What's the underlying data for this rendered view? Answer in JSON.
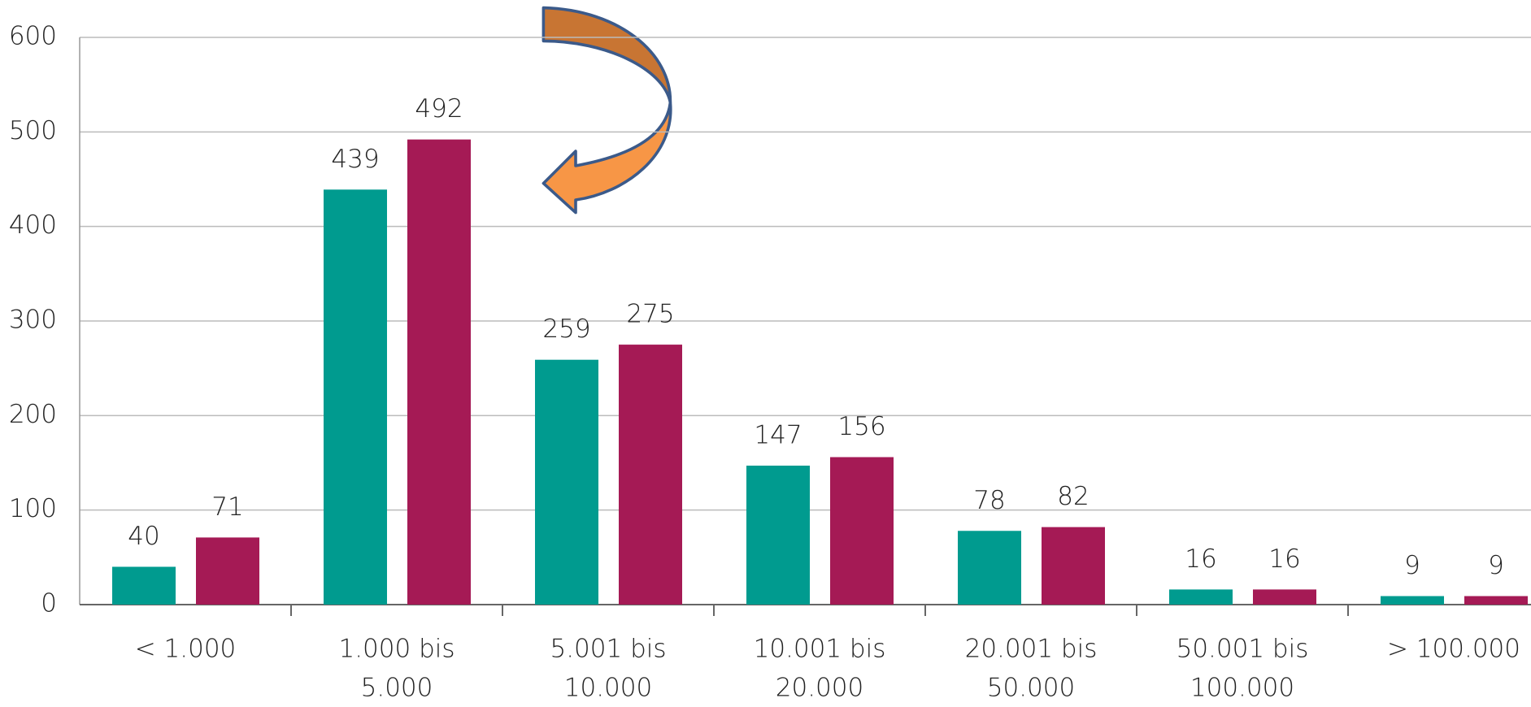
{
  "chart_data": {
    "type": "bar",
    "categories": [
      [
        "< 1.000"
      ],
      [
        "1.000 bis",
        "5.000"
      ],
      [
        "5.001 bis",
        "10.000"
      ],
      [
        "10.001 bis",
        "20.000"
      ],
      [
        "20.001 bis",
        "50.000"
      ],
      [
        "50.001 bis",
        "100.000"
      ],
      [
        "> 100.000"
      ]
    ],
    "series": [
      {
        "color": "#009b8f",
        "values": [
          40,
          439,
          259,
          147,
          78,
          16,
          9
        ]
      },
      {
        "color": "#a51a55",
        "values": [
          71,
          492,
          275,
          156,
          82,
          16,
          9
        ]
      }
    ],
    "ylim": [
      0,
      600
    ],
    "yticks": [
      0,
      100,
      200,
      300,
      400,
      500,
      600
    ],
    "grid": true
  }
}
